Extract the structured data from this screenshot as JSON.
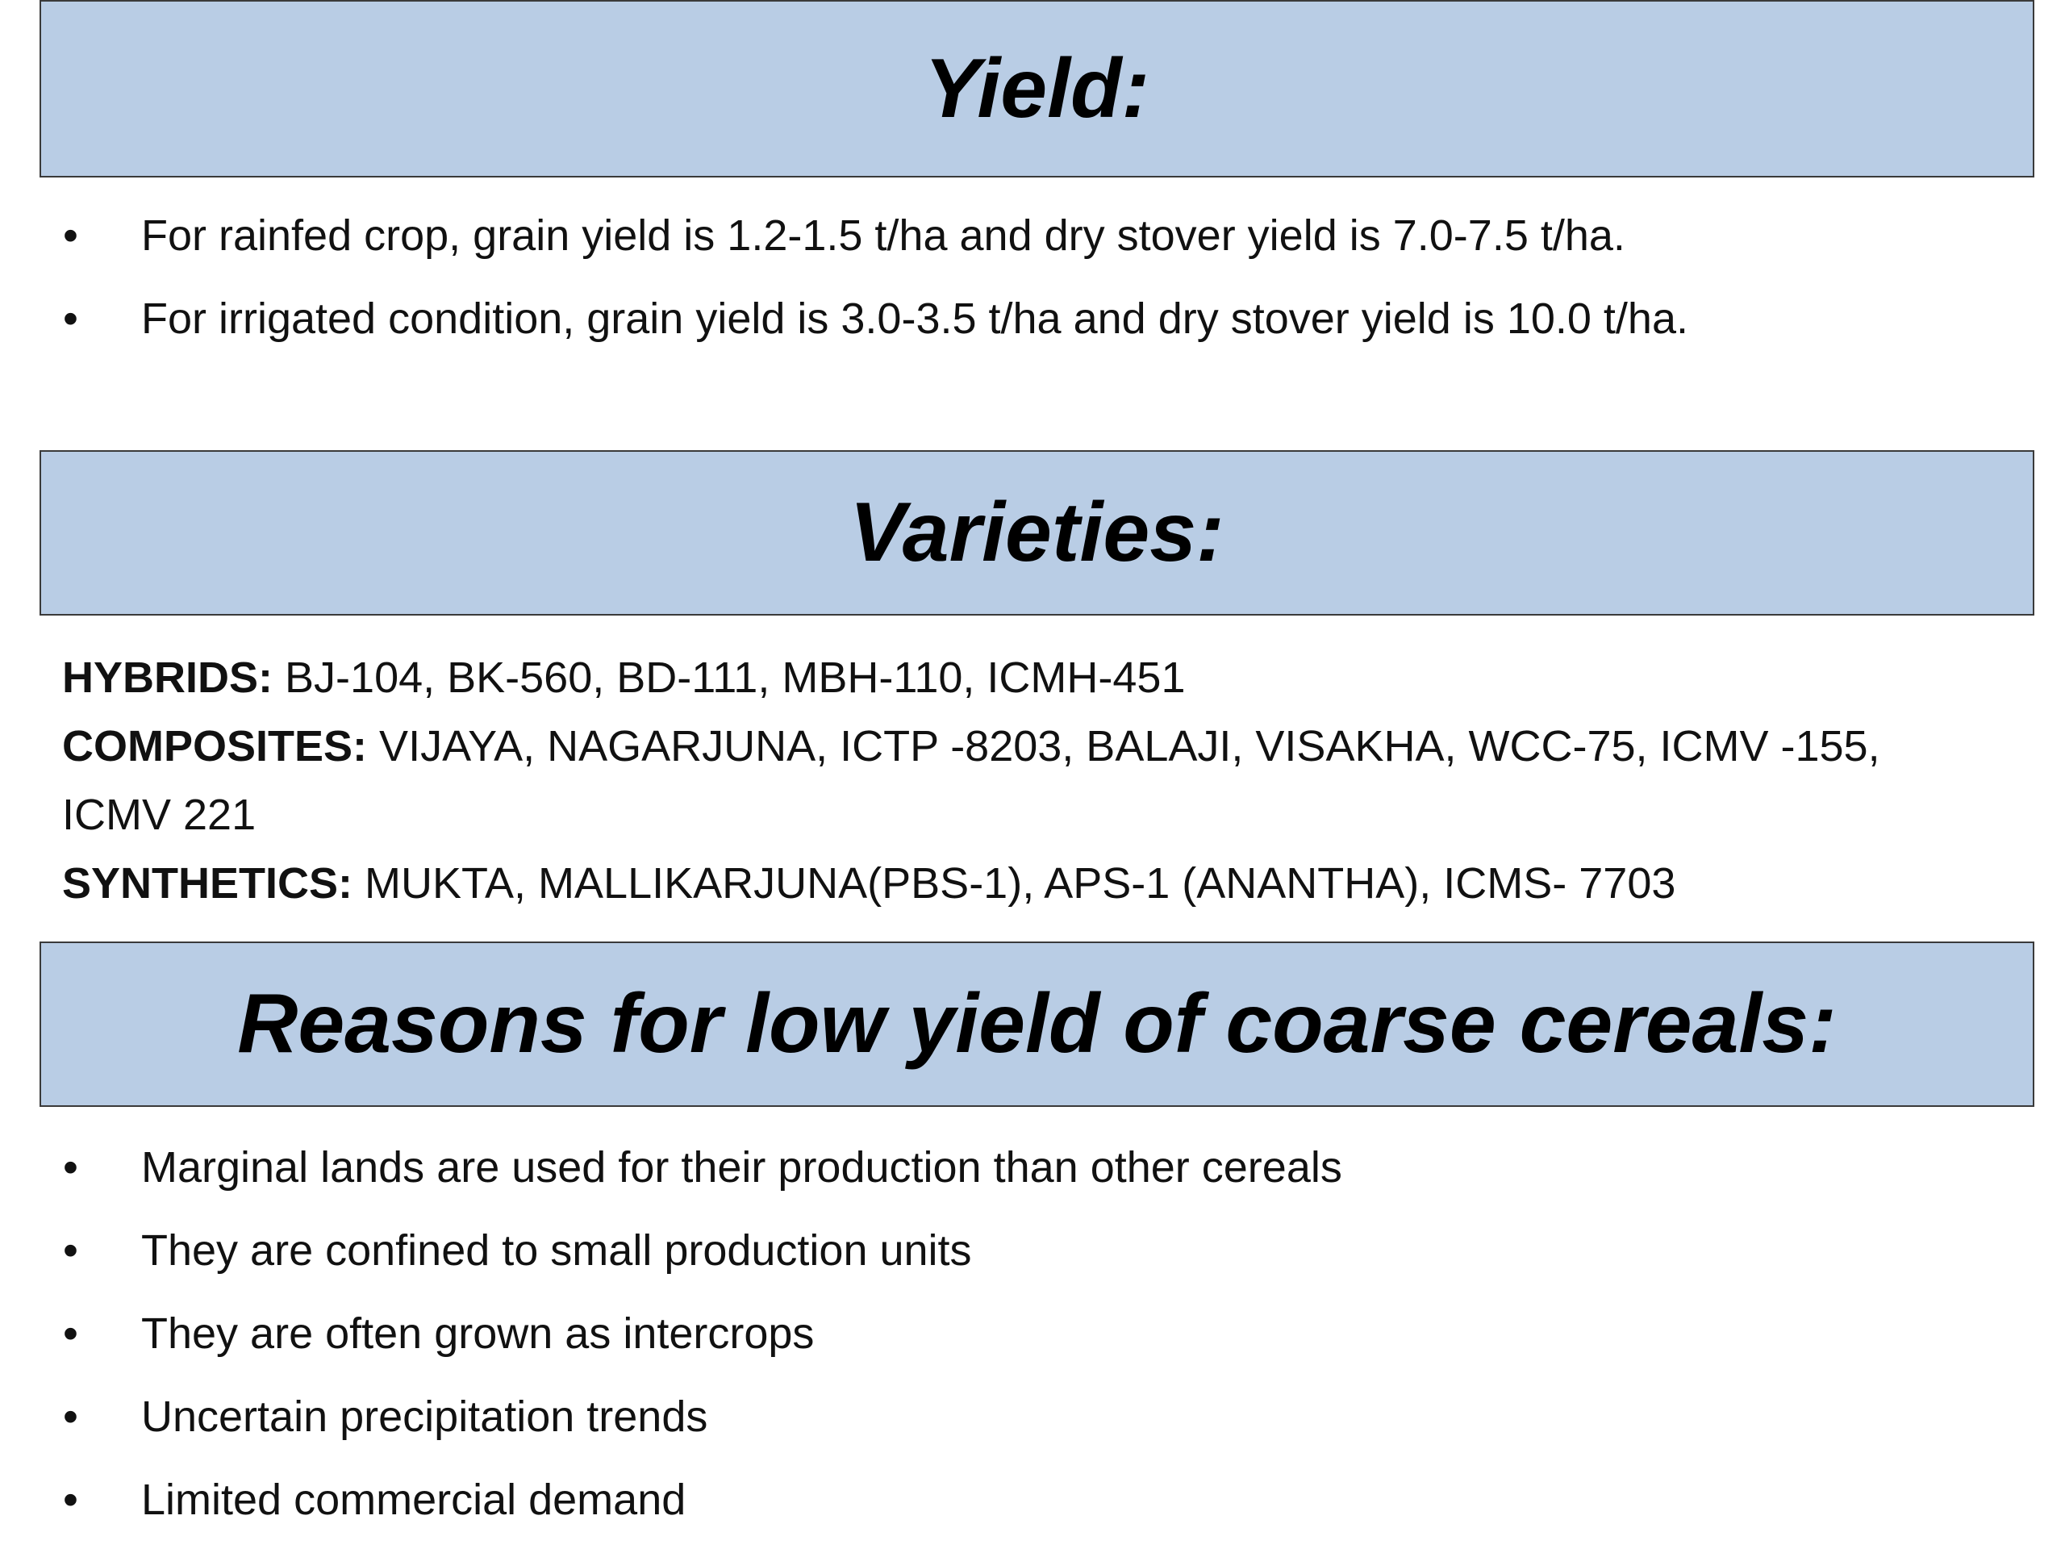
{
  "yield": {
    "title": "Yield:",
    "bullets": [
      "For rainfed crop, grain yield is 1.2-1.5 t/ha and dry stover yield is 7.0-7.5 t/ha.",
      "For irrigated condition, grain yield is 3.0-3.5 t/ha and dry stover yield is 10.0 t/ha."
    ]
  },
  "varieties": {
    "title": "Varieties:",
    "lines": [
      {
        "label": "HYBRIDS:",
        "text": "BJ-104, BK-560, BD-111, MBH-110, ICMH-451"
      },
      {
        "label": "COMPOSITES:",
        "text": "VIJAYA, NAGARJUNA, ICTP -8203, BALAJI, VISAKHA, WCC-75, ICMV -155, ICMV 221"
      },
      {
        "label": "SYNTHETICS:",
        "text": "MUKTA, MALLIKARJUNA(PBS-1), APS-1 (ANANTHA), ICMS- 7703"
      }
    ]
  },
  "reasons": {
    "title": "Reasons for low yield of coarse cereals:",
    "bullets": [
      "Marginal lands are used for their production than other cereals",
      "They are confined to small production units",
      "They are often grown as intercrops",
      "Uncertain precipitation trends",
      "Limited commercial demand"
    ]
  }
}
